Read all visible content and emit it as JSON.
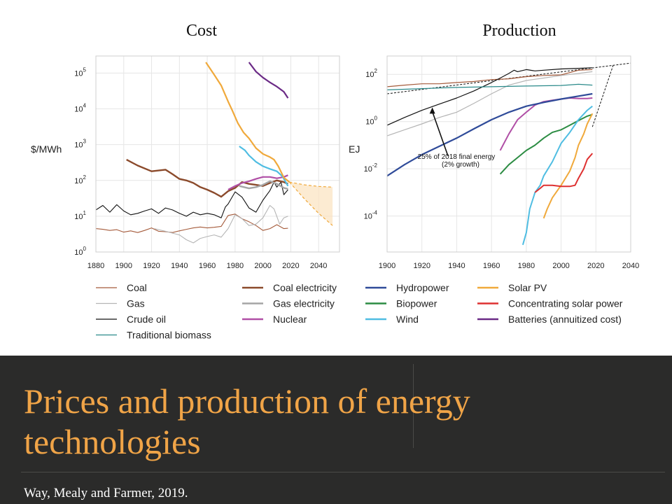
{
  "slide": {
    "title": "Prices and production of energy technologies",
    "source": "Way, Mealy and Farmer, 2019."
  },
  "colors": {
    "banner_bg": "#2b2b2a",
    "title": "#f0a447",
    "source_text": "#ffffff"
  },
  "legend": [
    {
      "label": "Coal",
      "color": "#a55b3b",
      "width": 1.2
    },
    {
      "label": "Gas",
      "color": "#b5b5b5",
      "width": 1.2
    },
    {
      "label": "Crude oil",
      "color": "#111111",
      "width": 1.2
    },
    {
      "label": "Traditional biomass",
      "color": "#2a8a8a",
      "width": 1.2
    },
    {
      "label": "Coal electricity",
      "color": "#8b4a2b",
      "width": 2.6
    },
    {
      "label": "Gas electricity",
      "color": "#a5a5a5",
      "width": 2.6
    },
    {
      "label": "Nuclear",
      "color": "#b04fa6",
      "width": 2.4
    },
    {
      "label": "Hydropower",
      "color": "#2f4b99",
      "width": 2.4
    },
    {
      "label": "Biopower",
      "color": "#2c8c43",
      "width": 2.4
    },
    {
      "label": "Wind",
      "color": "#4fbde2",
      "width": 2.4
    },
    {
      "label": "Solar PV",
      "color": "#f0a93b",
      "width": 2.4
    },
    {
      "label": "Concentrating solar power",
      "color": "#de3030",
      "width": 2.4
    },
    {
      "label": "Batteries (annuitized cost)",
      "color": "#6b2a86",
      "width": 2.4
    }
  ],
  "chart_data": [
    {
      "type": "line",
      "title": "Cost",
      "xlabel": "",
      "ylabel": "$/MWh",
      "yscale": "log",
      "xlim": [
        1880,
        2055
      ],
      "ylim": [
        1,
        300000
      ],
      "grid": true,
      "x_ticks": [
        "1880",
        "1900",
        "1920",
        "1940",
        "1960",
        "1980",
        "2000",
        "2020",
        "2040"
      ],
      "y_ticks": [
        {
          "base": "10",
          "exp": "0"
        },
        {
          "base": "10",
          "exp": "1"
        },
        {
          "base": "10",
          "exp": "2"
        },
        {
          "base": "10",
          "exp": "3"
        },
        {
          "base": "10",
          "exp": "4"
        },
        {
          "base": "10",
          "exp": "5"
        }
      ],
      "forecast": {
        "color": "#f0a93b",
        "band_fill": "#fbe3bf",
        "x": [
          2019,
          2030,
          2040,
          2050
        ],
        "upper": [
          90,
          75,
          68,
          65
        ],
        "lower": [
          90,
          30,
          12,
          5.5
        ]
      },
      "series": [
        {
          "name": "Coal",
          "color": "#a55b3b",
          "width": 1.1,
          "x": [
            1880,
            1885,
            1890,
            1895,
            1900,
            1905,
            1910,
            1915,
            1920,
            1925,
            1930,
            1935,
            1940,
            1945,
            1950,
            1955,
            1960,
            1965,
            1970,
            1975,
            1980,
            1985,
            1990,
            1995,
            2000,
            2005,
            2010,
            2015,
            2018
          ],
          "y": [
            4.5,
            4.3,
            4.0,
            4.2,
            3.6,
            3.9,
            3.5,
            4.0,
            4.7,
            3.8,
            3.7,
            3.5,
            3.9,
            4.3,
            4.7,
            5.0,
            4.7,
            4.9,
            5.2,
            10.5,
            11.5,
            8.5,
            7.0,
            5.5,
            4.0,
            4.5,
            5.8,
            4.5,
            4.6
          ]
        },
        {
          "name": "Gas",
          "color": "#b5b5b5",
          "width": 1.1,
          "x": [
            1922,
            1930,
            1940,
            1945,
            1950,
            1955,
            1960,
            1965,
            1970,
            1975,
            1980,
            1985,
            1990,
            1995,
            2000,
            2005,
            2008,
            2012,
            2015,
            2018
          ],
          "y": [
            4.5,
            3.8,
            3.0,
            2.2,
            1.8,
            2.4,
            2.7,
            3.0,
            2.6,
            4.5,
            11.0,
            8.5,
            5.5,
            6.0,
            9.0,
            20.0,
            16.0,
            6.0,
            9.0,
            10.0
          ]
        },
        {
          "name": "Crude oil",
          "color": "#111111",
          "width": 1.1,
          "x": [
            1880,
            1885,
            1890,
            1895,
            1900,
            1905,
            1910,
            1915,
            1920,
            1925,
            1930,
            1935,
            1940,
            1945,
            1950,
            1955,
            1960,
            1965,
            1970,
            1973,
            1975,
            1980,
            1985,
            1990,
            1995,
            2000,
            2005,
            2008,
            2010,
            2013,
            2015,
            2018
          ],
          "y": [
            15,
            20,
            13,
            21,
            14,
            11,
            12,
            14,
            16,
            12,
            17,
            15,
            12,
            10,
            13,
            11,
            12,
            11,
            9,
            18,
            22,
            48,
            34,
            17,
            13,
            28,
            52,
            90,
            65,
            90,
            40,
            55
          ]
        },
        {
          "name": "Traditional biomass",
          "color": "#2a8a8a",
          "width": 1.1,
          "x": [],
          "y": []
        },
        {
          "name": "Coal electricity",
          "color": "#8b4a2b",
          "width": 2.4,
          "x": [
            1902,
            1910,
            1920,
            1930,
            1935,
            1940,
            1945,
            1950,
            1955,
            1960,
            1965,
            1970,
            1975,
            1980,
            1985,
            1990,
            1995,
            2000,
            2005,
            2010,
            2015,
            2018
          ],
          "y": [
            380,
            260,
            180,
            200,
            150,
            110,
            100,
            85,
            65,
            55,
            45,
            35,
            50,
            62,
            90,
            80,
            75,
            70,
            85,
            100,
            90,
            80
          ]
        },
        {
          "name": "Gas electricity",
          "color": "#a5a5a5",
          "width": 2.4,
          "x": [
            1983,
            1990,
            1995,
            2000,
            2005,
            2010,
            2015,
            2018
          ],
          "y": [
            70,
            60,
            65,
            75,
            95,
            80,
            62,
            58
          ]
        },
        {
          "name": "Nuclear",
          "color": "#b04fa6",
          "width": 2.2,
          "x": [
            1975,
            1980,
            1985,
            1990,
            1995,
            2000,
            2005,
            2010,
            2015,
            2018
          ],
          "y": [
            55,
            70,
            85,
            95,
            110,
            125,
            125,
            115,
            125,
            140
          ]
        },
        {
          "name": "Hydropower",
          "color": "#2f4b99",
          "width": 2.2,
          "x": [],
          "y": []
        },
        {
          "name": "Biopower",
          "color": "#2c8c43",
          "width": 2.2,
          "x": [],
          "y": []
        },
        {
          "name": "Wind",
          "color": "#4fbde2",
          "width": 2.2,
          "x": [
            1983,
            1987,
            1990,
            1995,
            2000,
            2005,
            2010,
            2014,
            2018
          ],
          "y": [
            900,
            700,
            500,
            330,
            250,
            210,
            180,
            130,
            70
          ]
        },
        {
          "name": "Solar PV",
          "color": "#f0a93b",
          "width": 2.2,
          "x": [
            1959,
            1965,
            1970,
            1975,
            1978,
            1982,
            1986,
            1990,
            1995,
            2000,
            2005,
            2008,
            2011,
            2015,
            2019
          ],
          "y": [
            200000,
            90000,
            45000,
            16000,
            9000,
            4000,
            2200,
            1500,
            800,
            550,
            450,
            380,
            250,
            120,
            90
          ]
        },
        {
          "name": "Concentrating solar power",
          "color": "#de3030",
          "width": 2.2,
          "x": [],
          "y": []
        },
        {
          "name": "Batteries (annuitized cost)",
          "color": "#6b2a86",
          "width": 2.2,
          "x": [
            1990,
            1995,
            2000,
            2005,
            2010,
            2015,
            2018
          ],
          "y": [
            200000,
            110000,
            75000,
            55000,
            42000,
            30000,
            20000
          ]
        }
      ]
    },
    {
      "type": "line",
      "title": "Production",
      "xlabel": "",
      "ylabel": "EJ",
      "yscale": "log",
      "xlim": [
        1900,
        2040
      ],
      "ylim": [
        3e-06,
        600
      ],
      "grid": true,
      "x_ticks": [
        "1900",
        "1920",
        "1940",
        "1960",
        "1980",
        "2000",
        "2020",
        "2040"
      ],
      "y_ticks": [
        {
          "base": "10",
          "exp": "-4"
        },
        {
          "base": "10",
          "exp": "-2"
        },
        {
          "base": "10",
          "exp": "0"
        },
        {
          "base": "10",
          "exp": "2"
        }
      ],
      "annotation": {
        "text_lines": [
          "25% of 2018 final energy",
          "(2% growth)"
        ],
        "lines": [
          {
            "x": [
              1900,
              2040
            ],
            "y": [
              15,
              300
            ]
          },
          {
            "x": [
              2018,
              2030
            ],
            "y": [
              0.6,
              250
            ]
          }
        ],
        "arrow": {
          "from": [
            1935,
            0.035
          ],
          "to": [
            1926,
            4
          ]
        }
      },
      "series": [
        {
          "name": "Coal",
          "color": "#a55b3b",
          "width": 1.2,
          "x": [
            1900,
            1910,
            1920,
            1930,
            1940,
            1950,
            1960,
            1970,
            1980,
            1990,
            2000,
            2010,
            2018
          ],
          "y": [
            30,
            35,
            40,
            40,
            45,
            50,
            60,
            65,
            80,
            90,
            95,
            150,
            160
          ]
        },
        {
          "name": "Gas",
          "color": "#b5b5b5",
          "width": 1.2,
          "x": [
            1900,
            1910,
            1920,
            1930,
            1940,
            1950,
            1960,
            1970,
            1980,
            1990,
            2000,
            2010,
            2018
          ],
          "y": [
            0.25,
            0.45,
            0.8,
            1.5,
            2.5,
            6,
            15,
            35,
            55,
            70,
            90,
            110,
            130
          ]
        },
        {
          "name": "Crude oil",
          "color": "#111111",
          "width": 1.2,
          "x": [
            1900,
            1910,
            1920,
            1930,
            1940,
            1950,
            1960,
            1965,
            1970,
            1973,
            1975,
            1980,
            1985,
            1990,
            2000,
            2010,
            2018
          ],
          "y": [
            0.7,
            1.5,
            3,
            5.5,
            10,
            20,
            45,
            70,
            110,
            150,
            130,
            160,
            140,
            150,
            170,
            180,
            190
          ]
        },
        {
          "name": "Traditional biomass",
          "color": "#2a8a8a",
          "width": 1.2,
          "x": [
            1900,
            1920,
            1940,
            1960,
            1970,
            1980,
            1990,
            2000,
            2010,
            2018
          ],
          "y": [
            22,
            25,
            28,
            30,
            31,
            32,
            33,
            34,
            38,
            35
          ]
        },
        {
          "name": "Coal electricity",
          "color": "#8b4a2b",
          "width": 1.5,
          "x": [],
          "y": []
        },
        {
          "name": "Gas electricity",
          "color": "#a5a5a5",
          "width": 1.5,
          "x": [],
          "y": []
        },
        {
          "name": "Nuclear",
          "color": "#b04fa6",
          "width": 2.0,
          "x": [
            1965,
            1970,
            1975,
            1980,
            1985,
            1990,
            1995,
            2000,
            2005,
            2010,
            2015,
            2018
          ],
          "y": [
            0.06,
            0.3,
            1.2,
            2.5,
            5,
            7,
            8,
            9,
            10,
            9.5,
            9.5,
            10
          ]
        },
        {
          "name": "Hydropower",
          "color": "#2f4b99",
          "width": 2.2,
          "x": [
            1900,
            1910,
            1920,
            1930,
            1940,
            1950,
            1960,
            1970,
            1980,
            1990,
            2000,
            2010,
            2018
          ],
          "y": [
            0.005,
            0.015,
            0.04,
            0.09,
            0.2,
            0.5,
            1.2,
            2.5,
            4.5,
            6.5,
            9,
            12,
            15
          ]
        },
        {
          "name": "Biopower",
          "color": "#2c8c43",
          "width": 2.0,
          "x": [
            1965,
            1970,
            1975,
            1980,
            1985,
            1990,
            1995,
            2000,
            2005,
            2010,
            2015,
            2018
          ],
          "y": [
            0.006,
            0.015,
            0.03,
            0.06,
            0.1,
            0.2,
            0.35,
            0.45,
            0.7,
            1.1,
            1.7,
            2.0
          ]
        },
        {
          "name": "Wind",
          "color": "#4fbde2",
          "width": 2.0,
          "x": [
            1978,
            1980,
            1982,
            1985,
            1988,
            1990,
            1995,
            2000,
            2005,
            2010,
            2015,
            2018
          ],
          "y": [
            6e-06,
            2e-05,
            0.0002,
            0.001,
            0.002,
            0.005,
            0.02,
            0.12,
            0.35,
            1.2,
            3,
            4.5
          ]
        },
        {
          "name": "Solar PV",
          "color": "#f0a93b",
          "width": 2.0,
          "x": [
            1990,
            1992,
            1995,
            2000,
            2005,
            2008,
            2010,
            2013,
            2015,
            2018
          ],
          "y": [
            8e-05,
            0.0002,
            0.0006,
            0.002,
            0.008,
            0.03,
            0.1,
            0.3,
            0.8,
            2.2
          ]
        },
        {
          "name": "Concentrating solar power",
          "color": "#de3030",
          "width": 2.0,
          "x": [
            1985,
            1988,
            1990,
            1995,
            2000,
            2005,
            2008,
            2010,
            2013,
            2015,
            2018
          ],
          "y": [
            0.001,
            0.0015,
            0.002,
            0.002,
            0.0018,
            0.0018,
            0.002,
            0.004,
            0.01,
            0.025,
            0.045
          ]
        },
        {
          "name": "Batteries (annuitized cost)",
          "color": "#6b2a86",
          "width": 2.0,
          "x": [],
          "y": []
        }
      ]
    }
  ]
}
